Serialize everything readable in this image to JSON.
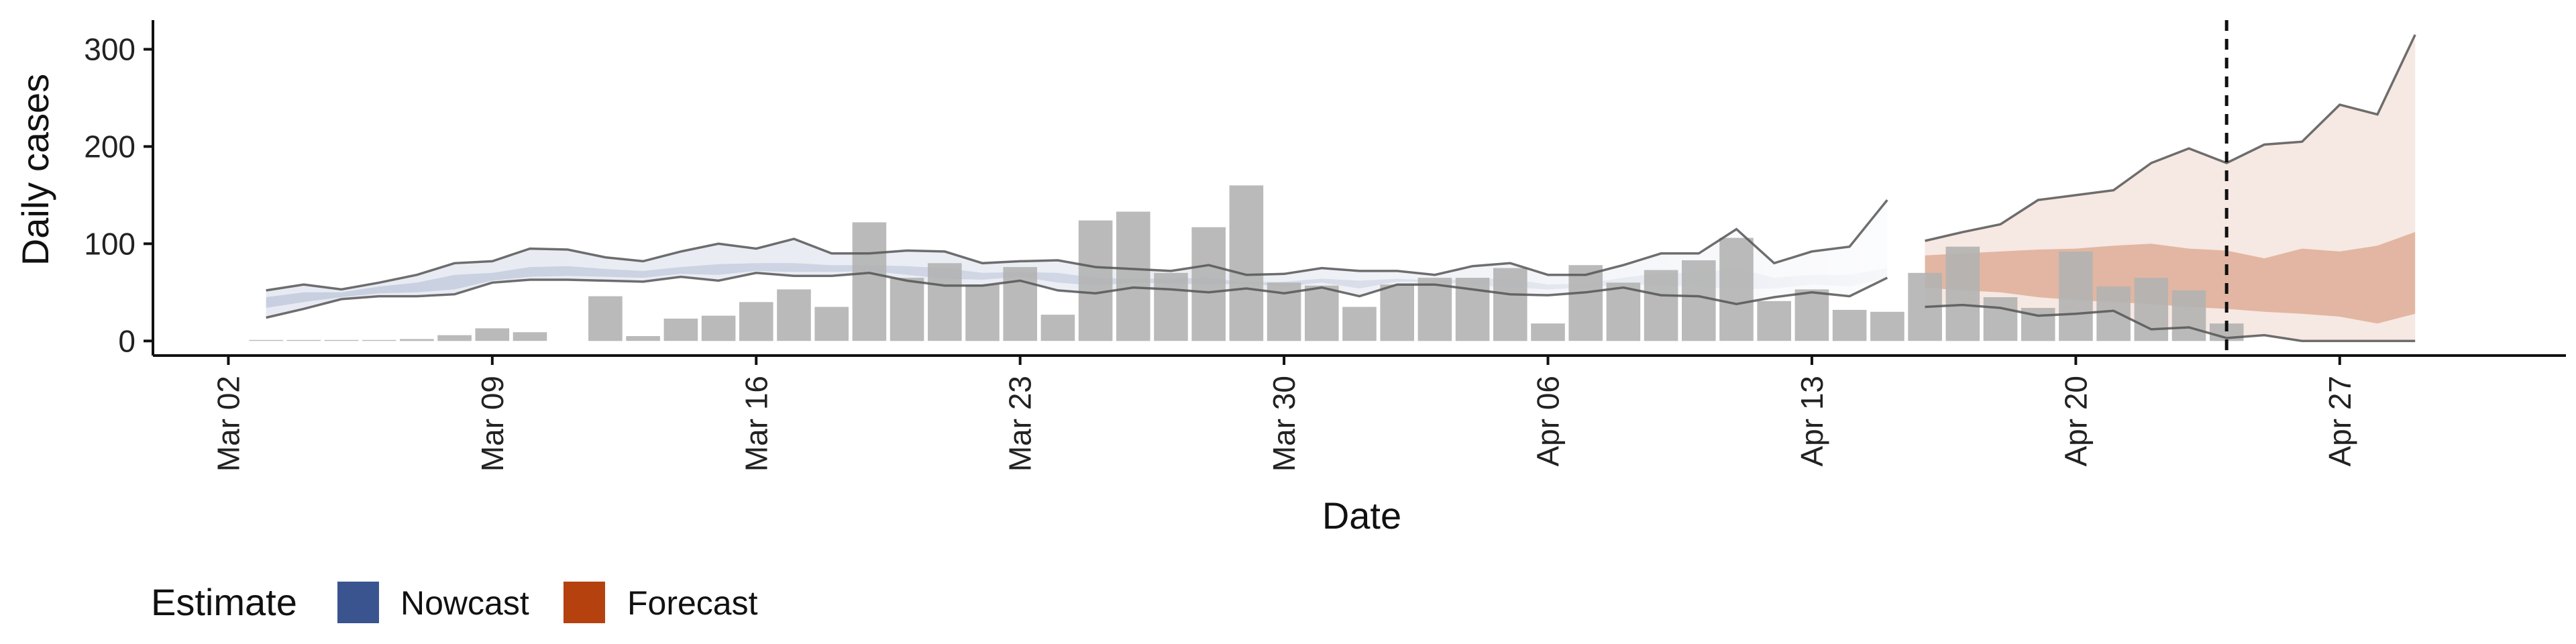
{
  "chart_data": {
    "type": "bar",
    "xlabel": "Date",
    "ylabel": "Daily cases",
    "ylim": [
      -15,
      330
    ],
    "y_ticks": [
      0,
      100,
      200,
      300
    ],
    "x_ticks": [
      {
        "date": "2020-03-02",
        "label": "Mar 02"
      },
      {
        "date": "2020-03-09",
        "label": "Mar 09"
      },
      {
        "date": "2020-03-16",
        "label": "Mar 16"
      },
      {
        "date": "2020-03-23",
        "label": "Mar 23"
      },
      {
        "date": "2020-03-30",
        "label": "Mar 30"
      },
      {
        "date": "2020-04-06",
        "label": "Apr 06"
      },
      {
        "date": "2020-04-13",
        "label": "Apr 13"
      },
      {
        "date": "2020-04-20",
        "label": "Apr 20"
      },
      {
        "date": "2020-04-27",
        "label": "Apr 27"
      }
    ],
    "x_range": [
      "2020-02-29",
      "2020-05-03"
    ],
    "reference_date": "2020-04-24",
    "bars": {
      "color": "#b3b3b3",
      "dates": [
        "2020-03-03",
        "2020-03-04",
        "2020-03-05",
        "2020-03-06",
        "2020-03-07",
        "2020-03-08",
        "2020-03-09",
        "2020-03-10",
        "2020-03-11",
        "2020-03-12",
        "2020-03-13",
        "2020-03-14",
        "2020-03-15",
        "2020-03-16",
        "2020-03-17",
        "2020-03-18",
        "2020-03-19",
        "2020-03-20",
        "2020-03-21",
        "2020-03-22",
        "2020-03-23",
        "2020-03-24",
        "2020-03-25",
        "2020-03-26",
        "2020-03-27",
        "2020-03-28",
        "2020-03-29",
        "2020-03-30",
        "2020-03-31",
        "2020-04-01",
        "2020-04-02",
        "2020-04-03",
        "2020-04-04",
        "2020-04-05",
        "2020-04-06",
        "2020-04-07",
        "2020-04-08",
        "2020-04-09",
        "2020-04-10",
        "2020-04-11",
        "2020-04-12",
        "2020-04-13",
        "2020-04-14",
        "2020-04-15",
        "2020-04-16",
        "2020-04-17",
        "2020-04-18",
        "2020-04-19",
        "2020-04-20",
        "2020-04-21",
        "2020-04-22",
        "2020-04-23",
        "2020-04-24"
      ],
      "values": [
        1,
        1,
        1,
        1,
        2,
        6,
        13,
        9,
        0,
        46,
        5,
        23,
        26,
        40,
        53,
        35,
        122,
        65,
        80,
        58,
        76,
        27,
        124,
        133,
        70,
        117,
        160,
        60,
        57,
        35,
        58,
        65,
        65,
        75,
        18,
        78,
        60,
        73,
        83,
        106,
        41,
        53,
        32,
        30,
        70,
        97,
        45,
        34,
        92,
        56,
        65,
        52,
        18
      ]
    },
    "series": [
      {
        "name": "Nowcast",
        "color": "#3a5490",
        "dates": [
          "2020-03-03",
          "2020-03-04",
          "2020-03-05",
          "2020-03-06",
          "2020-03-07",
          "2020-03-08",
          "2020-03-09",
          "2020-03-10",
          "2020-03-11",
          "2020-03-12",
          "2020-03-13",
          "2020-03-14",
          "2020-03-15",
          "2020-03-16",
          "2020-03-17",
          "2020-03-18",
          "2020-03-19",
          "2020-03-20",
          "2020-03-21",
          "2020-03-22",
          "2020-03-23",
          "2020-03-24",
          "2020-03-25",
          "2020-03-26",
          "2020-03-27",
          "2020-03-28",
          "2020-03-29",
          "2020-03-30",
          "2020-03-31",
          "2020-04-01",
          "2020-04-02",
          "2020-04-03",
          "2020-04-04",
          "2020-04-05",
          "2020-04-06",
          "2020-04-07",
          "2020-04-08",
          "2020-04-09",
          "2020-04-10",
          "2020-04-11",
          "2020-04-12",
          "2020-04-13",
          "2020-04-14",
          "2020-04-15"
        ],
        "upper90": [
          52,
          58,
          53,
          60,
          68,
          80,
          82,
          95,
          94,
          86,
          82,
          92,
          100,
          95,
          105,
          90,
          90,
          93,
          92,
          80,
          82,
          83,
          76,
          74,
          72,
          78,
          68,
          69,
          75,
          72,
          72,
          68,
          77,
          80,
          68,
          68,
          78,
          90,
          90,
          115,
          80,
          92,
          97,
          145
        ],
        "lower90": [
          24,
          33,
          43,
          46,
          46,
          48,
          60,
          63,
          63,
          62,
          61,
          66,
          62,
          70,
          67,
          67,
          70,
          62,
          57,
          57,
          62,
          52,
          49,
          55,
          53,
          50,
          54,
          49,
          55,
          46,
          58,
          58,
          53,
          48,
          47,
          50,
          55,
          47,
          46,
          38,
          45,
          50,
          46,
          65
        ],
        "upper50": [
          45,
          50,
          50,
          56,
          60,
          68,
          70,
          76,
          77,
          74,
          72,
          76,
          79,
          80,
          80,
          78,
          78,
          77,
          75,
          70,
          71,
          70,
          65,
          64,
          64,
          65,
          60,
          61,
          64,
          62,
          64,
          62,
          64,
          64,
          58,
          59,
          65,
          70,
          70,
          75,
          65,
          68,
          68,
          75
        ],
        "lower50": [
          34,
          40,
          45,
          49,
          50,
          53,
          62,
          66,
          67,
          66,
          65,
          69,
          68,
          72,
          71,
          71,
          72,
          68,
          64,
          63,
          66,
          60,
          57,
          60,
          59,
          58,
          59,
          56,
          60,
          54,
          61,
          61,
          58,
          55,
          53,
          55,
          59,
          57,
          56,
          53,
          54,
          58,
          56,
          65
        ]
      },
      {
        "name": "Forecast",
        "color": "#b4410e",
        "dates": [
          "2020-04-16",
          "2020-04-17",
          "2020-04-18",
          "2020-04-19",
          "2020-04-20",
          "2020-04-21",
          "2020-04-22",
          "2020-04-23",
          "2020-04-24",
          "2020-04-25",
          "2020-04-26",
          "2020-04-27",
          "2020-04-28",
          "2020-04-29"
        ],
        "upper90": [
          103,
          112,
          120,
          145,
          150,
          155,
          183,
          198,
          183,
          202,
          205,
          243,
          233,
          315
        ],
        "lower90": [
          35,
          37,
          34,
          26,
          28,
          31,
          12,
          14,
          3,
          6,
          0,
          0,
          0,
          0
        ],
        "upper50": [
          88,
          90,
          92,
          94,
          95,
          98,
          100,
          95,
          93,
          85,
          95,
          92,
          98,
          112
        ],
        "lower50": [
          55,
          52,
          50,
          45,
          42,
          40,
          38,
          35,
          33,
          30,
          28,
          25,
          18,
          28
        ]
      }
    ],
    "legend": {
      "title": "Estimate",
      "position": "bottom-left",
      "items": [
        {
          "label": "Nowcast",
          "color": "#3a5490"
        },
        {
          "label": "Forecast",
          "color": "#b4410e"
        }
      ]
    },
    "grid": false
  }
}
